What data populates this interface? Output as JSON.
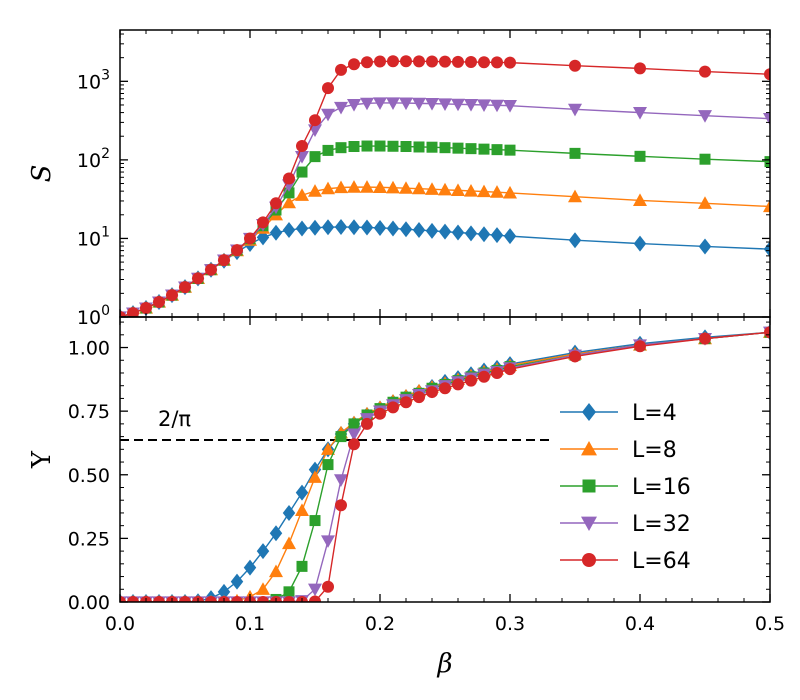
{
  "chart_data": [
    {
      "type": "line",
      "panel": "top",
      "ylabel": "S",
      "xlabel": "",
      "yscale": "log",
      "xlim": [
        0.0,
        0.5
      ],
      "ylim": [
        1,
        4500
      ],
      "ytick_values": [
        1,
        10,
        100,
        1000
      ],
      "ytick_labels": [
        {
          "base": "10",
          "exp": "0"
        },
        {
          "base": "10",
          "exp": "1"
        },
        {
          "base": "10",
          "exp": "2"
        },
        {
          "base": "10",
          "exp": "3"
        }
      ],
      "grid": false,
      "series": [
        {
          "name": "L=4",
          "color": "#1f77b4",
          "marker": "diamond",
          "x": [
            0.0,
            0.01,
            0.02,
            0.03,
            0.04,
            0.05,
            0.06,
            0.07,
            0.08,
            0.09,
            0.1,
            0.11,
            0.12,
            0.13,
            0.14,
            0.15,
            0.16,
            0.17,
            0.18,
            0.19,
            0.2,
            0.21,
            0.22,
            0.23,
            0.24,
            0.25,
            0.26,
            0.27,
            0.28,
            0.29,
            0.3,
            0.35,
            0.4,
            0.45,
            0.5
          ],
          "y": [
            1.0,
            1.12,
            1.3,
            1.55,
            1.9,
            2.4,
            3.1,
            4.0,
            5.2,
            6.7,
            8.5,
            10.3,
            11.8,
            12.8,
            13.4,
            13.7,
            13.9,
            14.0,
            13.9,
            13.8,
            13.6,
            13.4,
            13.1,
            12.8,
            12.5,
            12.2,
            11.9,
            11.6,
            11.3,
            11.0,
            10.7,
            9.5,
            8.6,
            7.9,
            7.3
          ]
        },
        {
          "name": "L=8",
          "color": "#ff7f0e",
          "marker": "triangle-up",
          "x": [
            0.0,
            0.01,
            0.02,
            0.03,
            0.04,
            0.05,
            0.06,
            0.07,
            0.08,
            0.09,
            0.1,
            0.11,
            0.12,
            0.13,
            0.14,
            0.15,
            0.16,
            0.17,
            0.18,
            0.19,
            0.2,
            0.21,
            0.22,
            0.23,
            0.24,
            0.25,
            0.26,
            0.27,
            0.28,
            0.29,
            0.3,
            0.35,
            0.4,
            0.45,
            0.5
          ],
          "y": [
            1.0,
            1.12,
            1.3,
            1.55,
            1.9,
            2.4,
            3.1,
            4.0,
            5.3,
            7.0,
            9.5,
            13.5,
            20.0,
            28.5,
            35.5,
            40.0,
            43.0,
            44.5,
            45.0,
            45.0,
            44.7,
            44.2,
            43.6,
            43.0,
            42.3,
            41.6,
            40.9,
            40.2,
            39.5,
            38.8,
            38.0,
            34.0,
            30.5,
            28.0,
            25.5
          ]
        },
        {
          "name": "L=16",
          "color": "#2ca02c",
          "marker": "square",
          "x": [
            0.0,
            0.01,
            0.02,
            0.03,
            0.04,
            0.05,
            0.06,
            0.07,
            0.08,
            0.09,
            0.1,
            0.11,
            0.12,
            0.13,
            0.14,
            0.15,
            0.16,
            0.17,
            0.18,
            0.19,
            0.2,
            0.21,
            0.22,
            0.23,
            0.24,
            0.25,
            0.26,
            0.27,
            0.28,
            0.29,
            0.3,
            0.35,
            0.4,
            0.45,
            0.5
          ],
          "y": [
            1.0,
            1.12,
            1.3,
            1.55,
            1.9,
            2.4,
            3.1,
            4.0,
            5.3,
            7.1,
            9.9,
            14.5,
            23.0,
            38.0,
            70.0,
            110.0,
            132.0,
            143.0,
            148.0,
            150.0,
            150.0,
            149.0,
            148.0,
            146.0,
            145.0,
            143.0,
            141.0,
            139.0,
            137.0,
            135.0,
            133.0,
            121.0,
            111.0,
            102.0,
            95.0
          ]
        },
        {
          "name": "L=32",
          "color": "#9467bd",
          "marker": "triangle-down",
          "x": [
            0.0,
            0.01,
            0.02,
            0.03,
            0.04,
            0.05,
            0.06,
            0.07,
            0.08,
            0.09,
            0.1,
            0.11,
            0.12,
            0.13,
            0.14,
            0.15,
            0.16,
            0.17,
            0.18,
            0.19,
            0.2,
            0.21,
            0.22,
            0.23,
            0.24,
            0.25,
            0.26,
            0.27,
            0.28,
            0.29,
            0.3,
            0.35,
            0.4,
            0.45,
            0.5
          ],
          "y": [
            1.0,
            1.12,
            1.3,
            1.55,
            1.9,
            2.4,
            3.1,
            4.0,
            5.3,
            7.1,
            10.0,
            15.0,
            25.0,
            48.0,
            110.0,
            240.0,
            380.0,
            465.0,
            505.0,
            525.0,
            530.0,
            530.0,
            528.0,
            524.0,
            520.0,
            515.0,
            510.0,
            505.0,
            500.0,
            495.0,
            490.0,
            440.0,
            400.0,
            365.0,
            335.0
          ]
        },
        {
          "name": "L=64",
          "color": "#d62728",
          "marker": "circle",
          "x": [
            0.0,
            0.01,
            0.02,
            0.03,
            0.04,
            0.05,
            0.06,
            0.07,
            0.08,
            0.09,
            0.1,
            0.11,
            0.12,
            0.13,
            0.14,
            0.15,
            0.16,
            0.17,
            0.18,
            0.19,
            0.2,
            0.21,
            0.22,
            0.23,
            0.24,
            0.25,
            0.26,
            0.27,
            0.28,
            0.29,
            0.3,
            0.35,
            0.4,
            0.45,
            0.5
          ],
          "y": [
            1.0,
            1.12,
            1.3,
            1.55,
            1.9,
            2.4,
            3.1,
            4.0,
            5.3,
            7.1,
            10.0,
            16.0,
            28.0,
            58.0,
            150.0,
            320.0,
            820.0,
            1400.0,
            1650.0,
            1750.0,
            1790.0,
            1800.0,
            1800.0,
            1795.0,
            1790.0,
            1780.0,
            1770.0,
            1760.0,
            1750.0,
            1740.0,
            1730.0,
            1580.0,
            1460.0,
            1330.0,
            1230.0
          ]
        }
      ]
    },
    {
      "type": "line",
      "panel": "bottom",
      "ylabel": "Υ",
      "xlabel": "β",
      "xlim": [
        0.0,
        0.5
      ],
      "ylim": [
        0.0,
        1.12
      ],
      "xtick_values": [
        0.0,
        0.1,
        0.2,
        0.3,
        0.4,
        0.5
      ],
      "xtick_labels": [
        "0.0",
        "0.1",
        "0.2",
        "0.3",
        "0.4",
        "0.5"
      ],
      "ytick_values": [
        0.0,
        0.25,
        0.5,
        0.75,
        1.0
      ],
      "ytick_labels": [
        "0.00",
        "0.25",
        "0.50",
        "0.75",
        "1.00"
      ],
      "grid": false,
      "legend_position": "right",
      "reference_line": {
        "label": "2/π",
        "y": 0.6366,
        "x_start": 0.0,
        "x_end": 0.333,
        "style": "dashed",
        "color": "#000000"
      },
      "series": [
        {
          "name": "L=4",
          "color": "#1f77b4",
          "marker": "diamond",
          "x": [
            0.0,
            0.01,
            0.02,
            0.03,
            0.04,
            0.05,
            0.06,
            0.07,
            0.08,
            0.09,
            0.1,
            0.11,
            0.12,
            0.13,
            0.14,
            0.15,
            0.16,
            0.17,
            0.18,
            0.19,
            0.2,
            0.21,
            0.22,
            0.23,
            0.24,
            0.25,
            0.26,
            0.27,
            0.28,
            0.29,
            0.3,
            0.35,
            0.4,
            0.45,
            0.5
          ],
          "y": [
            0.0,
            0.0,
            0.0,
            0.0,
            0.0,
            0.0,
            0.003,
            0.015,
            0.04,
            0.08,
            0.135,
            0.2,
            0.27,
            0.35,
            0.43,
            0.52,
            0.6,
            0.66,
            0.7,
            0.735,
            0.76,
            0.785,
            0.805,
            0.825,
            0.845,
            0.865,
            0.88,
            0.895,
            0.91,
            0.92,
            0.935,
            0.98,
            1.015,
            1.04,
            1.06
          ]
        },
        {
          "name": "L=8",
          "color": "#ff7f0e",
          "marker": "triangle-up",
          "x": [
            0.0,
            0.01,
            0.02,
            0.03,
            0.04,
            0.05,
            0.06,
            0.07,
            0.08,
            0.09,
            0.1,
            0.11,
            0.12,
            0.13,
            0.14,
            0.15,
            0.16,
            0.17,
            0.18,
            0.19,
            0.2,
            0.21,
            0.22,
            0.23,
            0.24,
            0.25,
            0.26,
            0.27,
            0.28,
            0.29,
            0.3,
            0.35,
            0.4,
            0.45,
            0.5
          ],
          "y": [
            0.0,
            0.0,
            0.0,
            0.0,
            0.0,
            0.0,
            0.0,
            0.0,
            0.0,
            0.005,
            0.02,
            0.05,
            0.12,
            0.23,
            0.36,
            0.49,
            0.6,
            0.665,
            0.705,
            0.74,
            0.765,
            0.79,
            0.81,
            0.83,
            0.845,
            0.86,
            0.875,
            0.89,
            0.905,
            0.915,
            0.93,
            0.975,
            1.01,
            1.035,
            1.06
          ]
        },
        {
          "name": "L=16",
          "color": "#2ca02c",
          "marker": "square",
          "x": [
            0.0,
            0.01,
            0.02,
            0.03,
            0.04,
            0.05,
            0.06,
            0.07,
            0.08,
            0.09,
            0.1,
            0.11,
            0.12,
            0.13,
            0.14,
            0.15,
            0.16,
            0.17,
            0.18,
            0.19,
            0.2,
            0.21,
            0.22,
            0.23,
            0.24,
            0.25,
            0.26,
            0.27,
            0.28,
            0.29,
            0.3,
            0.35,
            0.4,
            0.45,
            0.5
          ],
          "y": [
            0.0,
            0.0,
            0.0,
            0.0,
            0.0,
            0.0,
            0.0,
            0.0,
            0.0,
            0.0,
            0.0,
            0.0,
            0.01,
            0.04,
            0.14,
            0.32,
            0.54,
            0.65,
            0.7,
            0.735,
            0.76,
            0.785,
            0.805,
            0.82,
            0.84,
            0.855,
            0.87,
            0.885,
            0.9,
            0.91,
            0.925,
            0.97,
            1.01,
            1.035,
            1.06
          ]
        },
        {
          "name": "L=32",
          "color": "#9467bd",
          "marker": "triangle-down",
          "x": [
            0.0,
            0.01,
            0.02,
            0.03,
            0.04,
            0.05,
            0.06,
            0.07,
            0.08,
            0.09,
            0.1,
            0.11,
            0.12,
            0.13,
            0.14,
            0.15,
            0.16,
            0.17,
            0.18,
            0.19,
            0.2,
            0.21,
            0.22,
            0.23,
            0.24,
            0.25,
            0.26,
            0.27,
            0.28,
            0.29,
            0.3,
            0.35,
            0.4,
            0.45,
            0.5
          ],
          "y": [
            0.0,
            0.0,
            0.0,
            0.0,
            0.0,
            0.0,
            0.0,
            0.0,
            0.0,
            0.0,
            0.0,
            0.0,
            0.0,
            0.0,
            0.005,
            0.05,
            0.24,
            0.48,
            0.66,
            0.72,
            0.75,
            0.775,
            0.795,
            0.815,
            0.83,
            0.85,
            0.865,
            0.88,
            0.895,
            0.905,
            0.92,
            0.97,
            1.01,
            1.035,
            1.06
          ]
        },
        {
          "name": "L=64",
          "color": "#d62728",
          "marker": "circle",
          "x": [
            0.0,
            0.01,
            0.02,
            0.03,
            0.04,
            0.05,
            0.06,
            0.07,
            0.08,
            0.09,
            0.1,
            0.11,
            0.12,
            0.13,
            0.14,
            0.15,
            0.16,
            0.17,
            0.18,
            0.19,
            0.2,
            0.21,
            0.22,
            0.23,
            0.24,
            0.25,
            0.26,
            0.27,
            0.28,
            0.29,
            0.3,
            0.35,
            0.4,
            0.45,
            0.5
          ],
          "y": [
            0.0,
            0.0,
            0.0,
            0.0,
            0.0,
            0.0,
            0.0,
            0.0,
            0.0,
            0.0,
            0.0,
            0.0,
            0.0,
            0.0,
            0.0,
            0.002,
            0.06,
            0.38,
            0.62,
            0.7,
            0.74,
            0.765,
            0.785,
            0.805,
            0.825,
            0.84,
            0.855,
            0.87,
            0.885,
            0.9,
            0.915,
            0.965,
            1.005,
            1.035,
            1.06
          ]
        }
      ]
    }
  ]
}
